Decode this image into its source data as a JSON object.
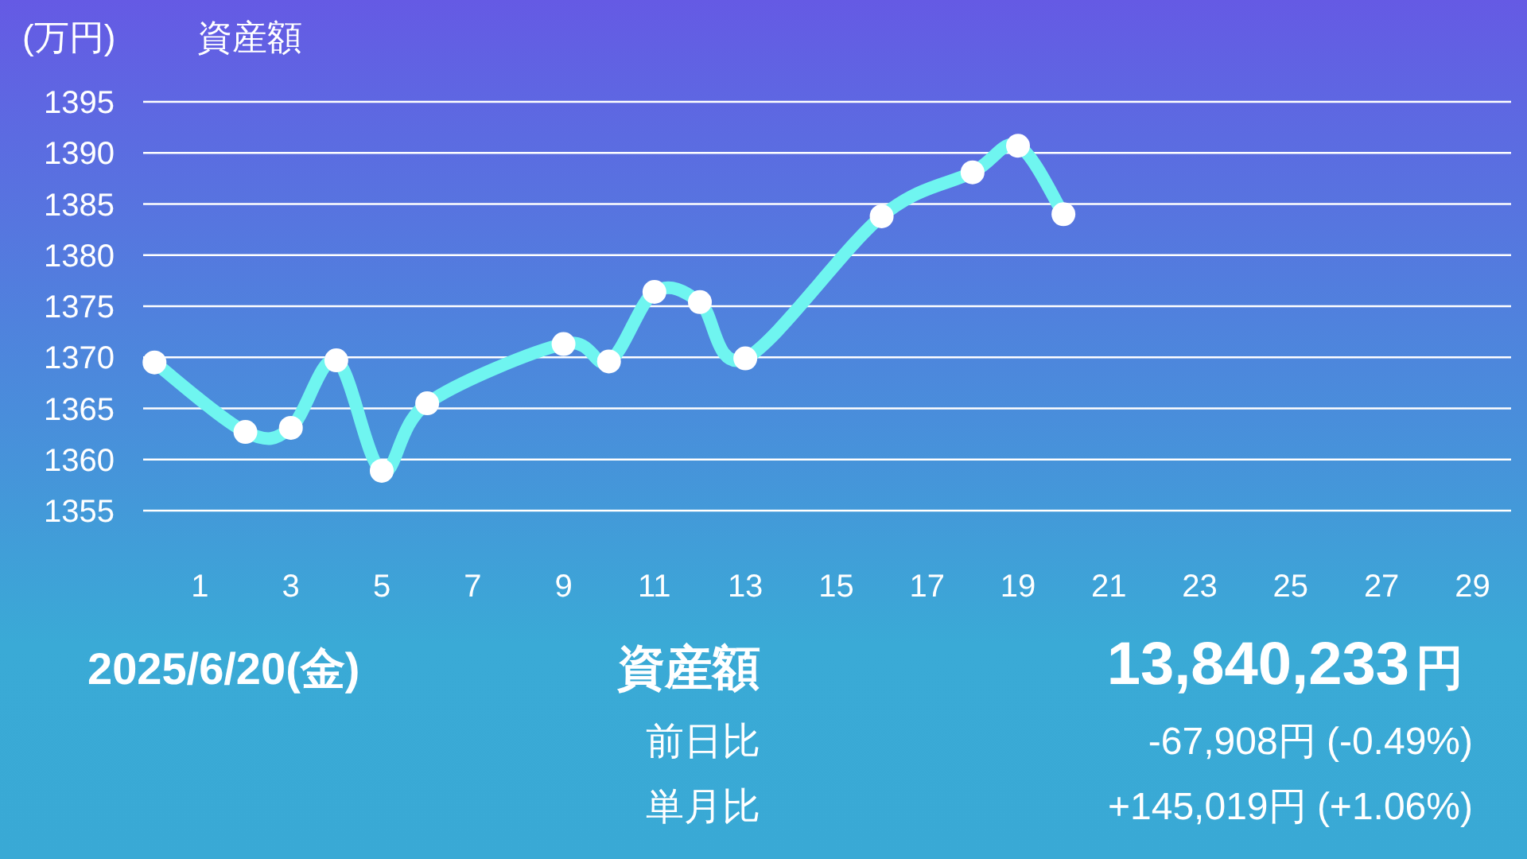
{
  "chart_data": {
    "type": "line",
    "title": "資産額",
    "ylabel": "(万円)",
    "x": [
      0,
      2,
      3,
      4,
      5,
      6,
      9,
      10,
      11,
      12,
      13,
      16,
      18,
      19,
      20
    ],
    "series": [
      {
        "color": "#6ff5f0",
        "values": [
          1369.5,
          1362.7,
          1363.1,
          1369.7,
          1358.9,
          1365.5,
          1371.3,
          1369.6,
          1376.4,
          1375.4,
          1369.9,
          1383.8,
          1388.1,
          1390.7,
          1384.0
        ]
      }
    ],
    "xlim": [
      -0.25,
      29.85
    ],
    "xticks": [
      1,
      3,
      5,
      7,
      9,
      11,
      13,
      15,
      17,
      19,
      21,
      23,
      25,
      27,
      29
    ],
    "ylim": [
      1355,
      1395
    ],
    "yticks": [
      1355,
      1360,
      1365,
      1370,
      1375,
      1380,
      1385,
      1390,
      1395
    ],
    "grid": "y",
    "marker": "circle",
    "line_style": "solid",
    "annotations": [
      "2025/6/20(金)",
      "資産額",
      "13,840,233",
      "円",
      "前日比",
      "-67,908円 (-0.49%)",
      "単月比",
      "+145,019円 (+1.06%)"
    ]
  }
}
